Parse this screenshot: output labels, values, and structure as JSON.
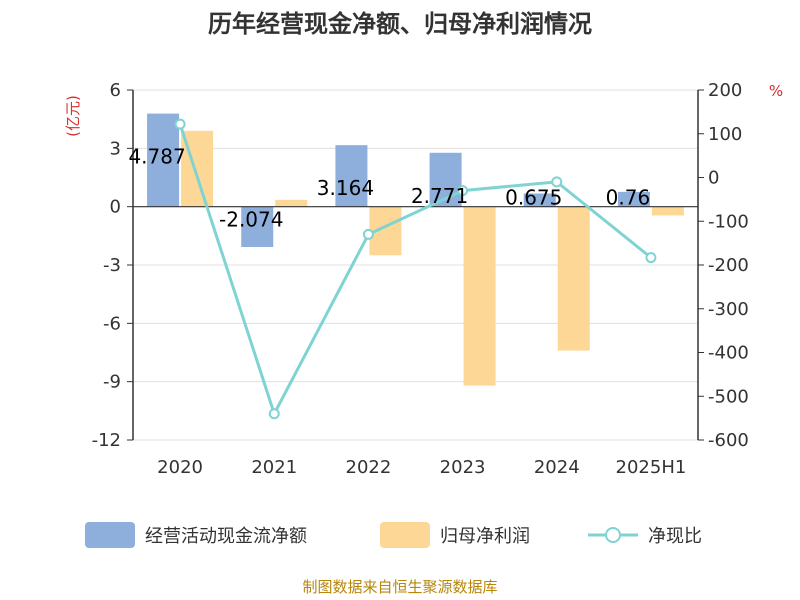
{
  "title": "历年经营现金净额、归母净利润情况",
  "source": "制图数据来自恒生聚源数据库",
  "chart_data": {
    "type": "bar",
    "categories": [
      "2020",
      "2021",
      "2022",
      "2023",
      "2024",
      "2025H1"
    ],
    "series": [
      {
        "name": "经营活动现金流净额",
        "kind": "bar",
        "axis": "left",
        "color": "#8eaedc",
        "values": [
          4.787,
          -2.074,
          3.164,
          2.771,
          0.675,
          0.76
        ],
        "labels": [
          "4.787",
          "-2.074",
          "3.164",
          "2.771",
          "0.675",
          "0.76"
        ]
      },
      {
        "name": "归母净利润",
        "kind": "bar",
        "axis": "left",
        "color": "#fdd795",
        "values": [
          3.9,
          0.35,
          -2.5,
          -9.2,
          -7.4,
          -0.45
        ]
      },
      {
        "name": "净现比",
        "kind": "line",
        "axis": "right",
        "color": "#7fd3d3",
        "values": [
          122,
          -540,
          -130,
          -30,
          -10,
          -183
        ]
      }
    ],
    "y_left": {
      "unit": "(亿元)",
      "min": -12,
      "max": 6,
      "ticks": [
        6,
        3,
        0,
        -3,
        -6,
        -9,
        -12
      ]
    },
    "y_right": {
      "unit": "%",
      "min": -600,
      "max": 200,
      "ticks": [
        200,
        100,
        0,
        -100,
        -200,
        -300,
        -400,
        -500,
        -600
      ]
    },
    "grid": true,
    "legend_position": "bottom"
  }
}
